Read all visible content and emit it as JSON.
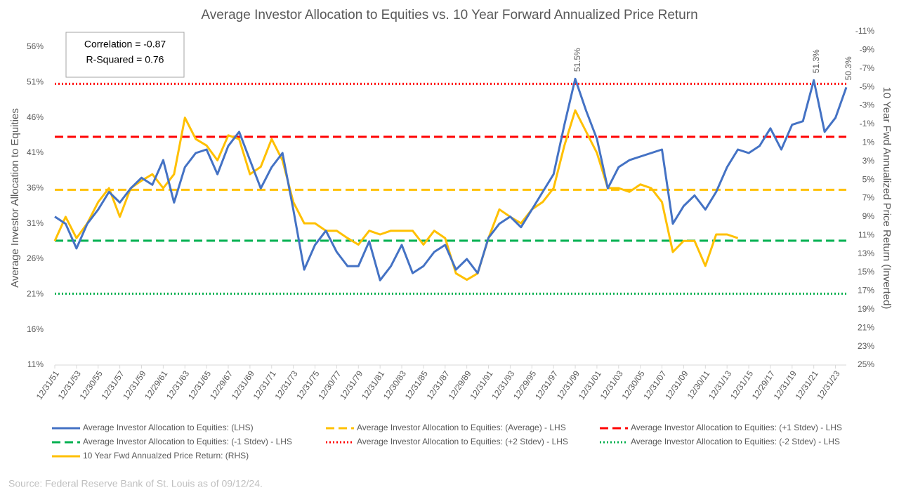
{
  "chart_data": {
    "type": "line",
    "title": "Average Investor Allocation to Equities vs. 10 Year Forward Annualized Price Return",
    "y_label": "Average Investor Allocation to Equities",
    "y2_label": "10 Year Fwd Annualized Price Return (Inverted)",
    "annotations": [
      "Correlation = -0.87",
      "R-Squared = 0.76"
    ],
    "source": "Source: Federal Reserve Bank of St. Louis as of 09/12/24.",
    "categories": [
      "12/31/51",
      null,
      "12/31/53",
      null,
      "12/30/55",
      null,
      "12/31/57",
      null,
      "12/31/59",
      null,
      "12/29/61",
      null,
      "12/31/63",
      null,
      "12/31/65",
      null,
      "12/29/67",
      null,
      "12/31/69",
      null,
      "12/31/71",
      null,
      "12/31/73",
      null,
      "12/31/75",
      null,
      "12/30/77",
      null,
      "12/31/79",
      null,
      "12/31/81",
      null,
      "12/30/83",
      null,
      "12/31/85",
      null,
      "12/31/87",
      null,
      "12/29/89",
      null,
      "12/31/91",
      null,
      "12/31/93",
      null,
      "12/29/95",
      null,
      "12/31/97",
      null,
      "12/31/99",
      null,
      "12/31/01",
      null,
      "12/31/03",
      null,
      "12/30/05",
      null,
      "12/31/07",
      null,
      "12/31/09",
      null,
      "12/30/11",
      null,
      "12/31/13",
      null,
      "12/31/15",
      null,
      "12/29/17",
      null,
      "12/31/19",
      null,
      "12/31/21",
      null,
      "12/31/23",
      null
    ],
    "series": [
      {
        "name": "Average Investor Allocation to Equities: (LHS)",
        "color": "#4472c4",
        "axis": "y",
        "values": [
          32,
          31,
          27.5,
          31,
          33,
          35.5,
          34,
          36,
          37.5,
          36.5,
          40,
          34,
          39,
          41,
          41.5,
          38,
          42,
          44,
          40,
          36,
          39,
          41,
          33,
          24.5,
          28,
          30,
          27,
          25,
          25,
          28.5,
          23,
          25,
          28,
          24,
          25,
          27,
          28,
          24.5,
          26,
          24,
          29,
          31,
          32,
          30.5,
          33,
          35.5,
          38,
          45,
          51.5,
          47,
          43,
          36,
          39,
          40,
          40.5,
          41,
          41.5,
          31,
          33.5,
          35,
          33,
          35.5,
          39,
          41.5,
          41,
          42,
          44.5,
          41.5,
          45,
          45.5,
          51.3,
          44,
          46,
          50.3
        ],
        "value_labels": [
          null,
          null,
          null,
          null,
          null,
          null,
          null,
          null,
          null,
          null,
          null,
          null,
          null,
          null,
          null,
          null,
          null,
          null,
          null,
          null,
          null,
          null,
          null,
          null,
          null,
          null,
          null,
          null,
          null,
          null,
          null,
          null,
          null,
          null,
          null,
          null,
          null,
          null,
          null,
          null,
          null,
          null,
          null,
          null,
          null,
          null,
          null,
          null,
          "51.5%",
          null,
          null,
          null,
          null,
          null,
          null,
          null,
          null,
          null,
          null,
          null,
          null,
          null,
          null,
          null,
          null,
          null,
          null,
          null,
          null,
          null,
          "51.3%",
          null,
          null,
          "50.3%"
        ]
      },
      {
        "name": "10 Year Fwd Annualzed Price Return: (RHS)",
        "color": "#ffc000",
        "axis": "y2",
        "values": [
          11.6,
          9.0,
          11.3,
          9.7,
          7.4,
          5.9,
          9.0,
          5.9,
          5.1,
          4.4,
          5.9,
          4.4,
          -1.7,
          0.6,
          1.3,
          2.9,
          0.2,
          0.6,
          4.4,
          3.6,
          0.6,
          2.9,
          7.4,
          9.7,
          9.7,
          10.5,
          10.5,
          11.3,
          12.0,
          10.5,
          10.9,
          10.5,
          10.5,
          10.5,
          12.0,
          10.5,
          11.3,
          15.1,
          15.8,
          15.1,
          11.3,
          8.2,
          9.0,
          9.7,
          8.2,
          7.4,
          5.9,
          1.3,
          -2.5,
          -0.2,
          2.1,
          5.9,
          5.9,
          6.3,
          5.5,
          5.9,
          7.4,
          12.8,
          11.6,
          11.6,
          14.3,
          10.9,
          10.9,
          11.3,
          null,
          null,
          null,
          null,
          null,
          null,
          null,
          null,
          null,
          null
        ]
      }
    ],
    "reference_lines": [
      {
        "name": "Average Investor Allocation to Equities: (Average) - LHS",
        "color": "#ffc000",
        "style": "dashed",
        "value": 35.8
      },
      {
        "name": "Average Investor Allocation to Equities: (+1 Stdev) - LHS",
        "color": "#ff0000",
        "style": "dashed",
        "value": 43.3
      },
      {
        "name": "Average Investor Allocation to Equities: (-1 Stdev) - LHS",
        "color": "#00b050",
        "style": "dashed",
        "value": 28.6
      },
      {
        "name": "Average Investor Allocation to Equities: (+2 Stdev) - LHS",
        "color": "#ff0000",
        "style": "dotted",
        "value": 50.8
      },
      {
        "name": "Average Investor Allocation to Equities: (-2 Stdev) - LHS",
        "color": "#00b050",
        "style": "dotted",
        "value": 21.1
      }
    ],
    "ylim": [
      11,
      56
    ],
    "yticks": [
      {
        "value": 11,
        "label": "11%"
      },
      {
        "value": 16,
        "label": "16%"
      },
      {
        "value": 21,
        "label": "21%"
      },
      {
        "value": 26,
        "label": "26%"
      },
      {
        "value": 31,
        "label": "31%"
      },
      {
        "value": 36,
        "label": "36%"
      },
      {
        "value": 41,
        "label": "41%"
      },
      {
        "value": 46,
        "label": "46%"
      },
      {
        "value": 51,
        "label": "51%"
      },
      {
        "value": 56,
        "label": "56%"
      }
    ],
    "y2lim": [
      25,
      -11
    ],
    "y2ticks": [
      {
        "value": 25,
        "label": "25%"
      },
      {
        "value": 23,
        "label": "23%"
      },
      {
        "value": 21,
        "label": "21%"
      },
      {
        "value": 19,
        "label": "19%"
      },
      {
        "value": 17,
        "label": "17%"
      },
      {
        "value": 15,
        "label": "15%"
      },
      {
        "value": 13,
        "label": "13%"
      },
      {
        "value": 11,
        "label": "11%"
      },
      {
        "value": 9,
        "label": "9%"
      },
      {
        "value": 7,
        "label": "7%"
      },
      {
        "value": 5,
        "label": "5%"
      },
      {
        "value": 3,
        "label": "3%"
      },
      {
        "value": 1,
        "label": "1%"
      },
      {
        "value": -1,
        "label": "-1%"
      },
      {
        "value": -3,
        "label": "-3%"
      },
      {
        "value": -5,
        "label": "-5%"
      },
      {
        "value": -7,
        "label": "-7%"
      },
      {
        "value": -9,
        "label": "-9%"
      },
      {
        "value": -11,
        "label": "-11%"
      }
    ],
    "grid": false
  }
}
